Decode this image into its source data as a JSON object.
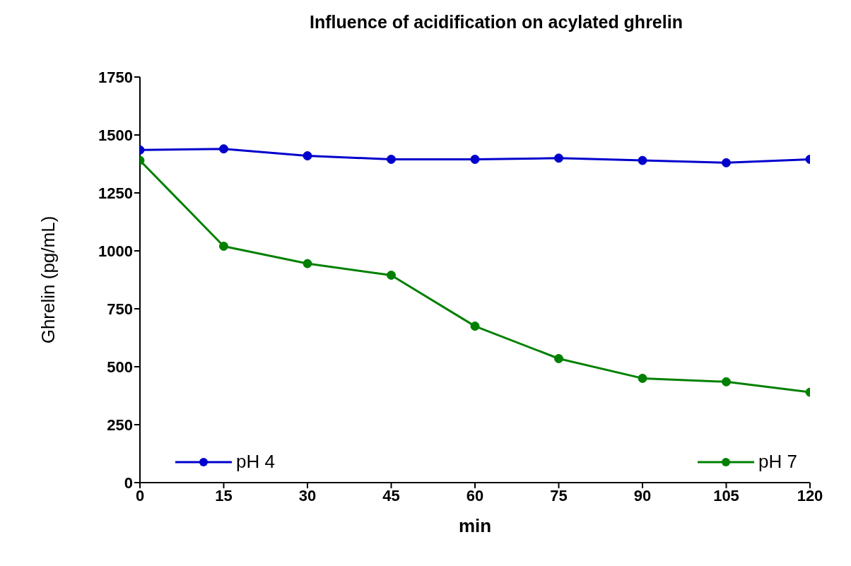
{
  "chart_data": {
    "type": "line",
    "title": "Influence of acidification on acylated ghrelin",
    "xlabel": "min",
    "ylabel": "Ghrelin (pg/mL)",
    "x": [
      0,
      15,
      30,
      45,
      60,
      75,
      90,
      105,
      120
    ],
    "series": [
      {
        "name": "pH 4",
        "color": "#0000cc",
        "values": [
          1435,
          1440,
          1410,
          1395,
          1395,
          1400,
          1390,
          1380,
          1395
        ]
      },
      {
        "name": "pH 7",
        "color": "#008000",
        "values": [
          1390,
          1020,
          945,
          895,
          675,
          535,
          450,
          435,
          390
        ]
      }
    ],
    "xlim": [
      0,
      120
    ],
    "xticks": [
      0,
      15,
      30,
      45,
      60,
      75,
      90,
      105,
      120
    ],
    "ylim": [
      0,
      1750
    ],
    "yticks": [
      0,
      250,
      500,
      750,
      1000,
      1250,
      1500,
      1750
    ],
    "marker": "circle",
    "line_style": "solid",
    "legend": "bottom",
    "grid": false
  }
}
